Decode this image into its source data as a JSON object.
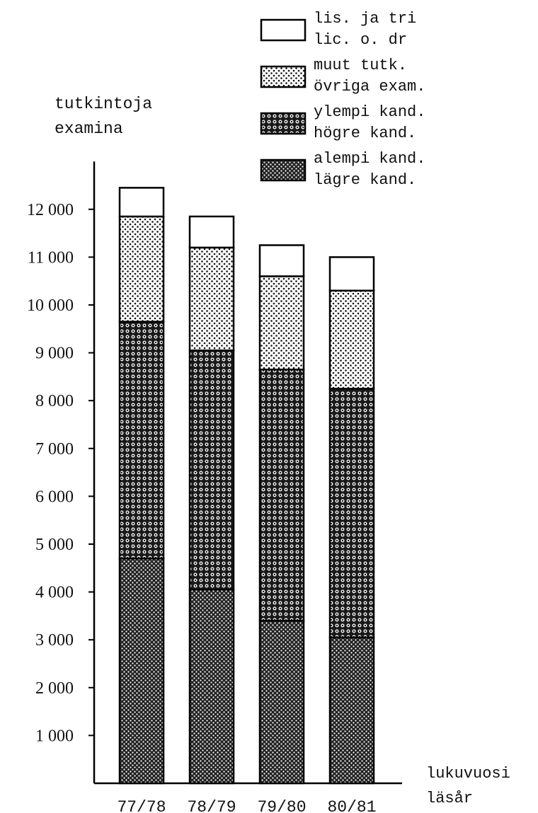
{
  "chart_data": {
    "type": "bar",
    "stacked": true,
    "ylabel": [
      "tutkintoja",
      "examina"
    ],
    "xlabel": [
      "lukuvuosi",
      "läsår"
    ],
    "categories": [
      "77/78",
      "78/79",
      "79/80",
      "80/81"
    ],
    "y_ticks": [
      {
        "value": 1000,
        "label": "1 000"
      },
      {
        "value": 2000,
        "label": "2 000"
      },
      {
        "value": 3000,
        "label": "3 000"
      },
      {
        "value": 4000,
        "label": "4 000"
      },
      {
        "value": 5000,
        "label": "5 000"
      },
      {
        "value": 6000,
        "label": "6 000"
      },
      {
        "value": 7000,
        "label": "7 000"
      },
      {
        "value": 8000,
        "label": "8 000"
      },
      {
        "value": 9000,
        "label": "9 000"
      },
      {
        "value": 10000,
        "label": "10 000"
      },
      {
        "value": 11000,
        "label": "11 000"
      },
      {
        "value": 12000,
        "label": "12 000"
      }
    ],
    "ylim": [
      0,
      13000
    ],
    "grid": false,
    "legend_position": "top-right",
    "series": [
      {
        "name": [
          "alempi kand.",
          "lägre kand."
        ],
        "pattern": "dense-crosshatch",
        "values": [
          4700,
          4050,
          3400,
          3050
        ]
      },
      {
        "name": [
          "ylempi kand.",
          "högre kand."
        ],
        "pattern": "rings",
        "values": [
          4950,
          5000,
          5250,
          5200
        ]
      },
      {
        "name": [
          "muut tutk.",
          "övriga exam."
        ],
        "pattern": "dots",
        "values": [
          2200,
          2150,
          1950,
          2050
        ]
      },
      {
        "name": [
          "lis. ja tri",
          "lic. o. dr"
        ],
        "pattern": "blank",
        "values": [
          600,
          650,
          650,
          700
        ]
      }
    ]
  }
}
